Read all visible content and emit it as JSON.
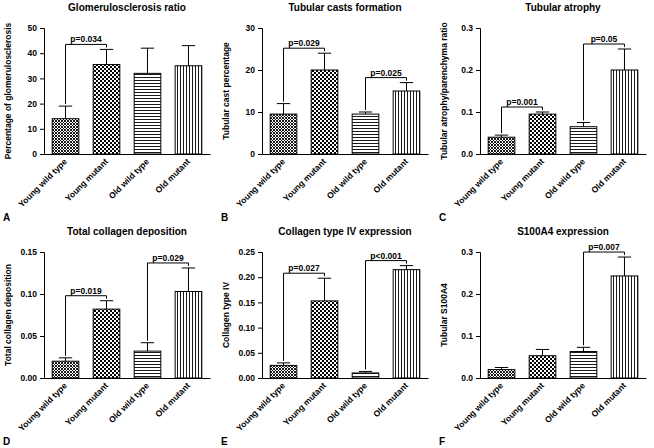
{
  "chart_data": [
    {
      "type": "bar",
      "label": "A",
      "title": "Glomerulosclerosis ratio",
      "y_label": "Percentage of glomerulosclerosis",
      "categories": [
        "Young wild type",
        "Young mutant",
        "Old wild type",
        "Old mutant"
      ],
      "values": [
        14,
        35.5,
        32,
        35
      ],
      "errors": [
        5,
        6,
        10,
        8
      ],
      "color": "#000000",
      "ylim": [
        0,
        50
      ],
      "yticks": [
        0,
        10,
        20,
        30,
        40,
        50
      ],
      "annotations": [
        {
          "text": "p=0.034",
          "from": 0,
          "to": 1
        }
      ]
    },
    {
      "type": "bar",
      "label": "B",
      "title": "Tubular casts formation",
      "y_label": "Tubular cast percentage",
      "categories": [
        "Young wild type",
        "Young mutant",
        "Old wild type",
        "Old mutant"
      ],
      "values": [
        9.5,
        20,
        9.5,
        15
      ],
      "errors": [
        2.5,
        4,
        0.5,
        2
      ],
      "color": "#000000",
      "ylim": [
        0,
        30
      ],
      "yticks": [
        0,
        10,
        20,
        30
      ],
      "annotations": [
        {
          "text": "p=0.029",
          "from": 0,
          "to": 1
        },
        {
          "text": "p=0.025",
          "from": 2,
          "to": 3
        }
      ]
    },
    {
      "type": "bar",
      "label": "C",
      "title": "Tubular atrophy",
      "y_label": "Tubular atrophy/parenchyma ratio",
      "categories": [
        "Young wild type",
        "Young mutant",
        "Old wild type",
        "Old mutant"
      ],
      "values": [
        0.04,
        0.095,
        0.065,
        0.2
      ],
      "errors": [
        0.005,
        0.005,
        0.01,
        0.05
      ],
      "color": "#000000",
      "ylim": [
        0,
        0.3
      ],
      "yticks": [
        {
          "value": 0,
          "label": "0.0"
        },
        0.1,
        0.2,
        0.3
      ],
      "annotations": [
        {
          "text": "p=0.001",
          "from": 0,
          "to": 1
        },
        {
          "text": "p=0.05",
          "from": 2,
          "to": 3
        }
      ]
    },
    {
      "type": "bar",
      "label": "D",
      "title": "Total collagen deposition",
      "y_label": "Total collagen deposition",
      "categories": [
        "Young wild type",
        "Young mutant",
        "Old wild type",
        "Old mutant"
      ],
      "values": [
        0.02,
        0.082,
        0.032,
        0.103
      ],
      "errors": [
        0.004,
        0.01,
        0.01,
        0.028
      ],
      "color": "#000000",
      "ylim": [
        0,
        0.15
      ],
      "yticks": [
        {
          "value": 0,
          "label": "0.00"
        },
        0.05,
        {
          "value": 0.1,
          "label": "0.10"
        },
        0.15
      ],
      "annotations": [
        {
          "text": "p=0.019",
          "from": 0,
          "to": 1
        },
        {
          "text": "p=0.029",
          "from": 2,
          "to": 3
        }
      ]
    },
    {
      "type": "bar",
      "label": "E",
      "title": "Collagen type IV expression",
      "y_label": "Collagen type IV",
      "categories": [
        "Young wild type",
        "Young mutant",
        "Old wild type",
        "Old mutant"
      ],
      "values": [
        0.025,
        0.153,
        0.01,
        0.215
      ],
      "errors": [
        0.005,
        0.045,
        0.003,
        0.008
      ],
      "color": "#000000",
      "ylim": [
        0,
        0.25
      ],
      "yticks": [
        {
          "value": 0,
          "label": "0.00"
        },
        0.05,
        {
          "value": 0.1,
          "label": "0.10"
        },
        0.15,
        {
          "value": 0.2,
          "label": "0.20"
        },
        0.25
      ],
      "annotations": [
        {
          "text": "p=0.027",
          "from": 0,
          "to": 1
        },
        {
          "text": "p<0.001",
          "from": 2,
          "to": 3
        }
      ]
    },
    {
      "type": "bar",
      "label": "F",
      "title": "S100A4 expression",
      "y_label": "Tubular S100A4",
      "categories": [
        "Young wild type",
        "Young mutant",
        "Old wild type",
        "Old mutant"
      ],
      "values": [
        0.02,
        0.053,
        0.063,
        0.243
      ],
      "errors": [
        0.005,
        0.015,
        0.01,
        0.045
      ],
      "color": "#000000",
      "ylim": [
        0,
        0.3
      ],
      "yticks": [
        {
          "value": 0,
          "label": "0.0"
        },
        0.1,
        0.2,
        0.3
      ],
      "annotations": [
        {
          "text": "p=0.007",
          "from": 2,
          "to": 3
        }
      ]
    }
  ]
}
